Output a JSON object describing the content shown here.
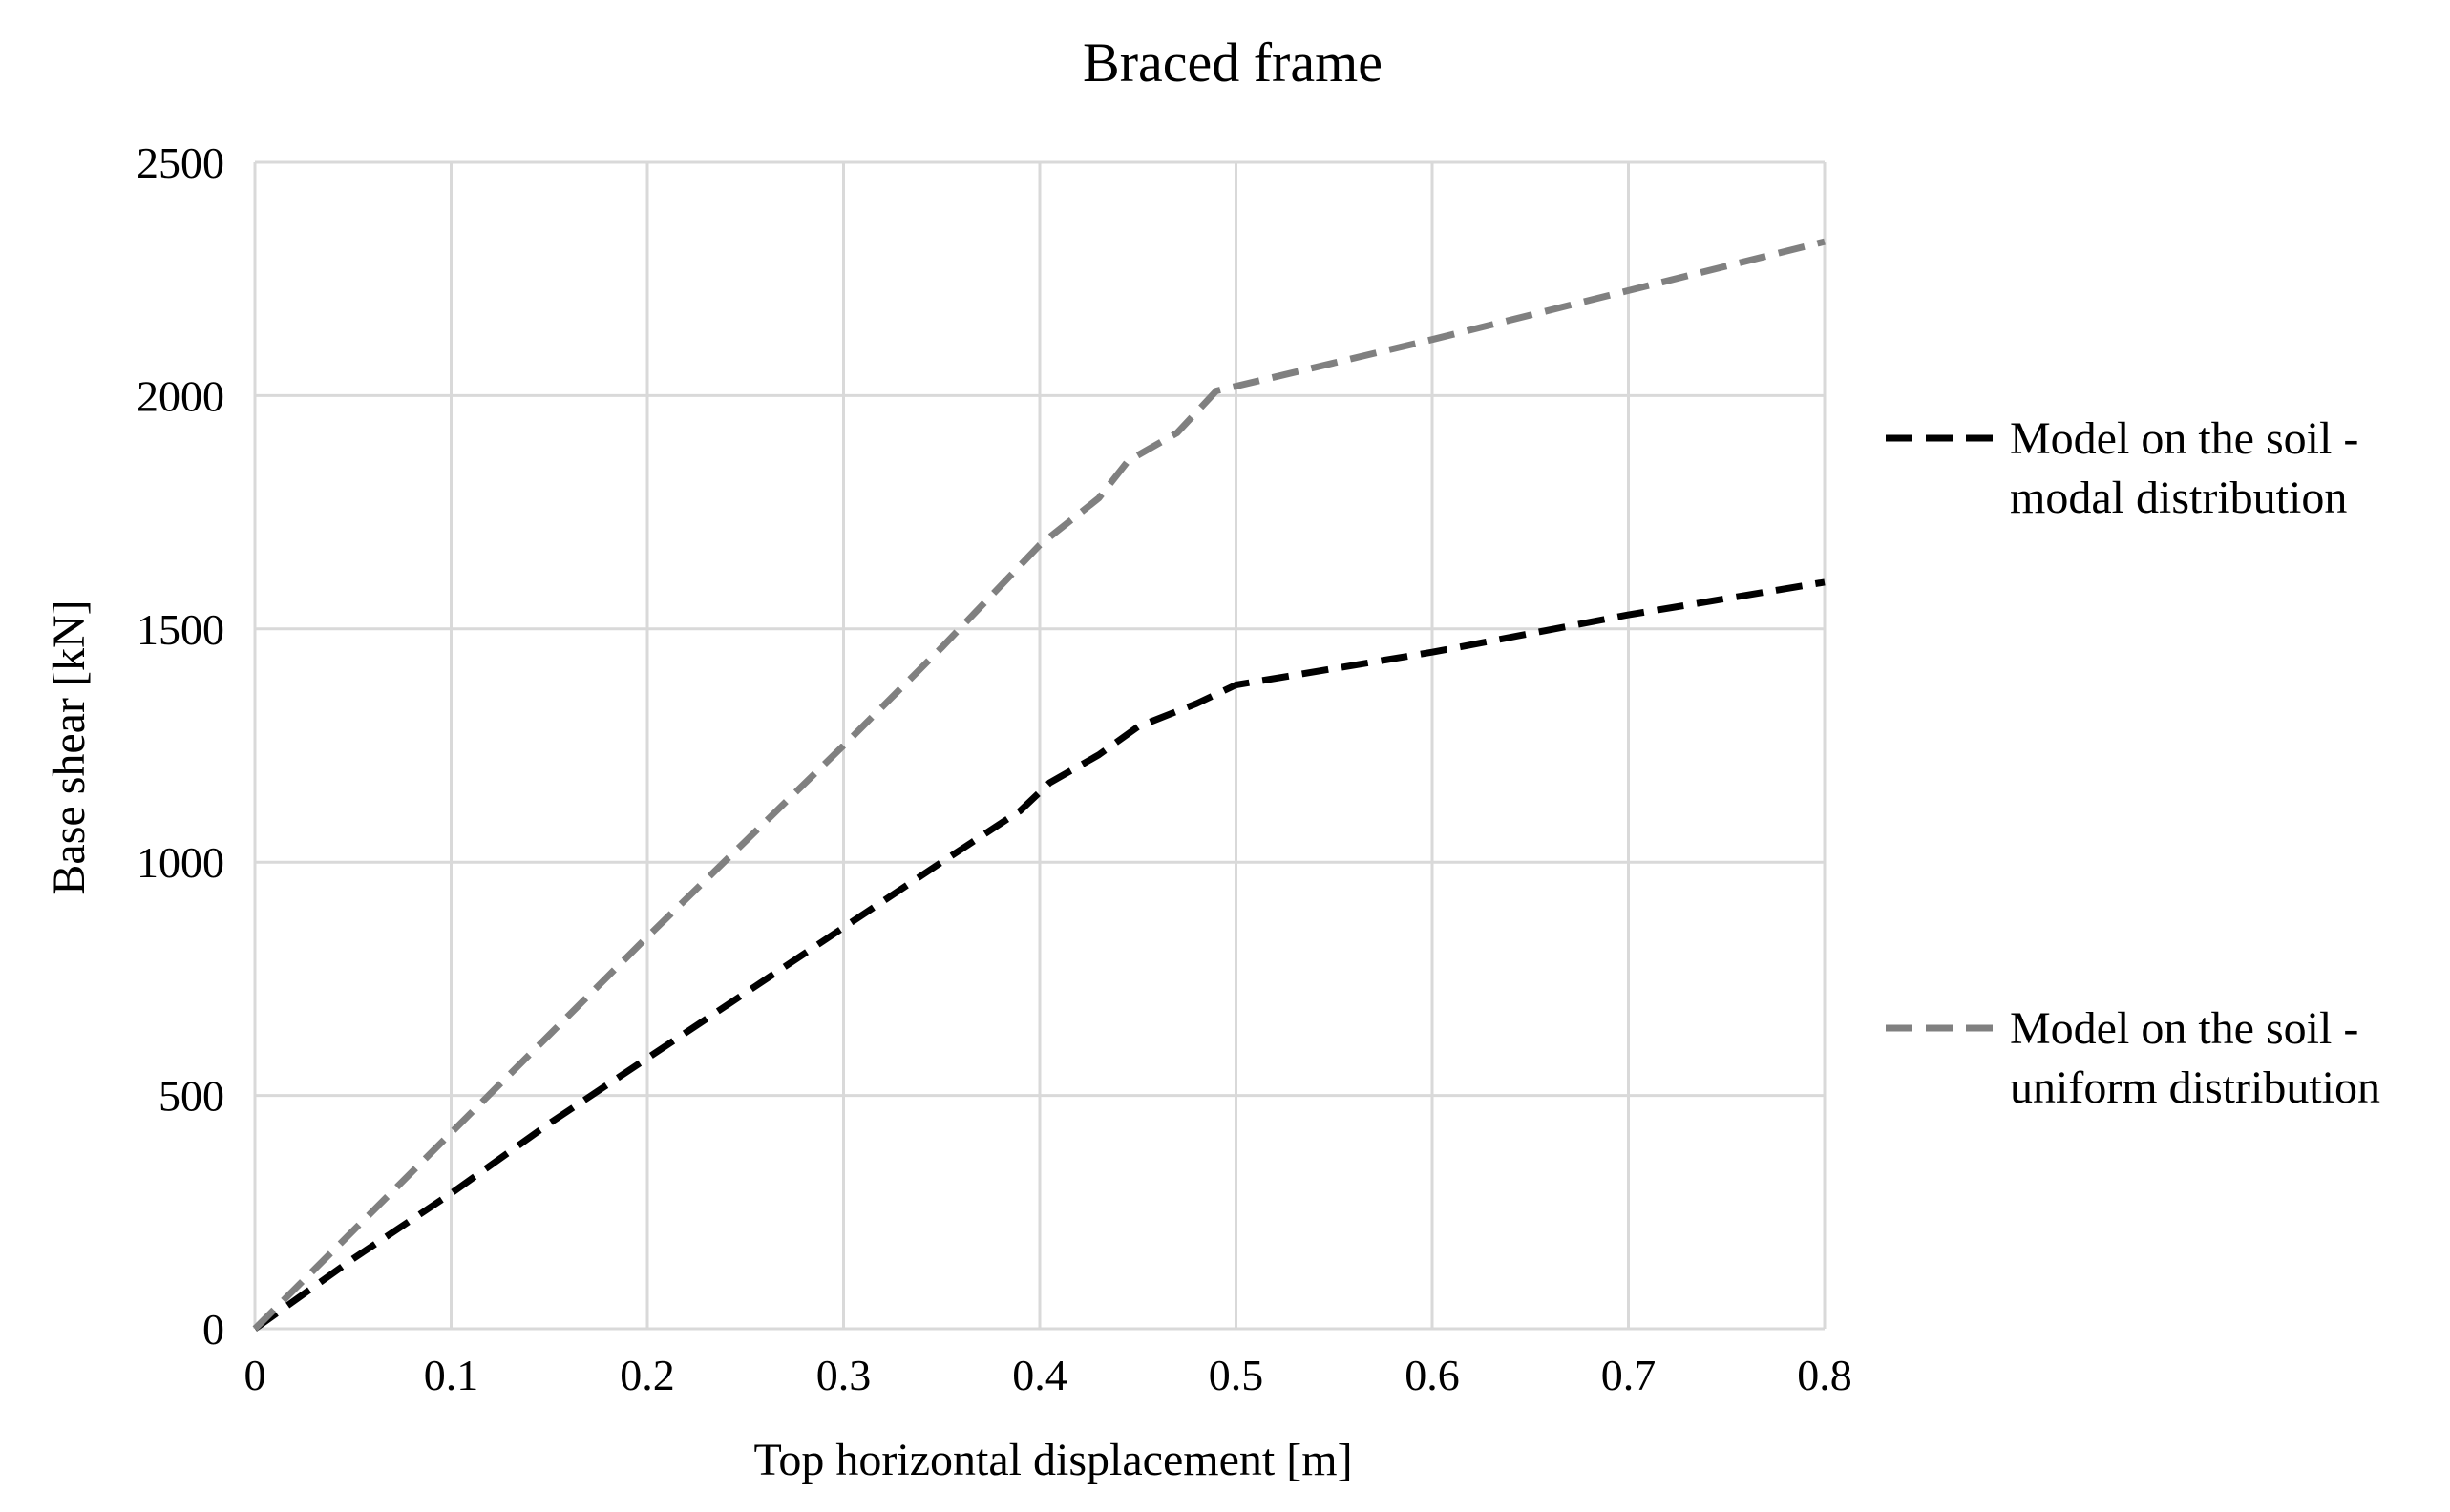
{
  "chart_data": {
    "type": "line",
    "title": "Braced frame",
    "xlabel": "Top horizontal displacement [m]",
    "ylabel": "Base shear [kN]",
    "xlim": [
      0,
      0.8
    ],
    "ylim": [
      0,
      2500
    ],
    "x_ticks": [
      "0",
      "0.1",
      "0.2",
      "0.3",
      "0.4",
      "0.5",
      "0.6",
      "0.7",
      "0.8"
    ],
    "y_ticks": [
      "0",
      "500",
      "1000",
      "1500",
      "2000",
      "2500"
    ],
    "grid": true,
    "legend_position": "right",
    "series": [
      {
        "name": "Model on the soil - modal distribution",
        "legend_lines": [
          "Model on the soil -",
          "modal distribution"
        ],
        "color": "#000000",
        "style": "dashed",
        "points": [
          [
            0,
            0
          ],
          [
            0.05,
            150
          ],
          [
            0.1,
            290
          ],
          [
            0.15,
            440
          ],
          [
            0.2,
            580
          ],
          [
            0.25,
            720
          ],
          [
            0.3,
            860
          ],
          [
            0.35,
            1000
          ],
          [
            0.39,
            1110
          ],
          [
            0.405,
            1170
          ],
          [
            0.43,
            1230
          ],
          [
            0.45,
            1290
          ],
          [
            0.48,
            1340
          ],
          [
            0.5,
            1380
          ],
          [
            0.6,
            1450
          ],
          [
            0.7,
            1530
          ],
          [
            0.8,
            1600
          ]
        ]
      },
      {
        "name": "Model on the soil - uniform distribution",
        "legend_lines": [
          "Model on the soil -",
          "uniform distribution"
        ],
        "color": "#808080",
        "style": "dashed",
        "points": [
          [
            0,
            0
          ],
          [
            0.05,
            210
          ],
          [
            0.1,
            420
          ],
          [
            0.15,
            630
          ],
          [
            0.2,
            840
          ],
          [
            0.25,
            1045
          ],
          [
            0.3,
            1250
          ],
          [
            0.35,
            1460
          ],
          [
            0.4,
            1680
          ],
          [
            0.43,
            1780
          ],
          [
            0.445,
            1860
          ],
          [
            0.47,
            1920
          ],
          [
            0.49,
            2010
          ],
          [
            0.6,
            2120
          ],
          [
            0.7,
            2225
          ],
          [
            0.8,
            2330
          ]
        ]
      }
    ]
  }
}
